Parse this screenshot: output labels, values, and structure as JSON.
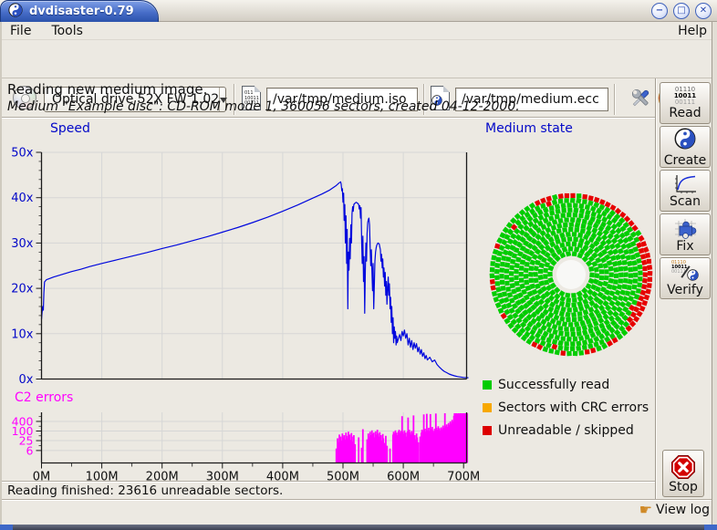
{
  "window": {
    "title": "dvdisaster-0.79",
    "minimize": "−",
    "maximize": "□",
    "close": "✕"
  },
  "menu": {
    "file": "File",
    "tools": "Tools",
    "help": "Help"
  },
  "toolbar": {
    "drive_value": "Optical drive 52X FW 1.02",
    "image_file": "/var/tmp/medium.iso",
    "ecc_file": "/var/tmp/medium.ecc"
  },
  "header": {
    "line1": "Reading new medium image.",
    "line2": "Medium \"Example disc\": CD-ROM mode 1, 360056 sectors, created 04-12-2000."
  },
  "icons": {
    "read_lines": [
      "01110",
      "10011",
      "00111"
    ],
    "doc_lines": [
      "011",
      "10011",
      "00111"
    ]
  },
  "chart_data": [
    {
      "type": "line",
      "title": "Speed",
      "color": "#0008dd",
      "axis_color": "#0308c8",
      "ylim": [
        0,
        50
      ],
      "xlim": [
        0,
        705
      ],
      "y_ticks": [
        0,
        10,
        20,
        30,
        40,
        50
      ],
      "ylabel_ticks": [
        "0x",
        "10x",
        "20x",
        "30x",
        "40x",
        "50x"
      ],
      "x_ticks": [
        0,
        100,
        200,
        300,
        400,
        500,
        600,
        700
      ],
      "x_tick_labels": [
        "0M",
        "100M",
        "200M",
        "300M",
        "400M",
        "500M",
        "600M",
        "700M"
      ],
      "grid": true,
      "points": [
        [
          0,
          13.2
        ],
        [
          1,
          14.8
        ],
        [
          2,
          16.0
        ],
        [
          3,
          15.2
        ],
        [
          4,
          19.0
        ],
        [
          5,
          21.4
        ],
        [
          8,
          21.9
        ],
        [
          12,
          22.1
        ],
        [
          20,
          22.5
        ],
        [
          30,
          22.9
        ],
        [
          40,
          23.3
        ],
        [
          50,
          23.7
        ],
        [
          65,
          24.2
        ],
        [
          80,
          24.8
        ],
        [
          100,
          25.5
        ],
        [
          125,
          26.3
        ],
        [
          150,
          27.1
        ],
        [
          175,
          27.9
        ],
        [
          200,
          28.8
        ],
        [
          225,
          29.6
        ],
        [
          250,
          30.5
        ],
        [
          275,
          31.4
        ],
        [
          300,
          32.4
        ],
        [
          325,
          33.4
        ],
        [
          350,
          34.5
        ],
        [
          375,
          35.7
        ],
        [
          400,
          37.0
        ],
        [
          425,
          38.4
        ],
        [
          450,
          39.9
        ],
        [
          465,
          40.8
        ],
        [
          478,
          41.7
        ],
        [
          488,
          42.6
        ],
        [
          493,
          43.2
        ],
        [
          496,
          43.5
        ],
        [
          497,
          43.0
        ],
        [
          498,
          41.5
        ],
        [
          499,
          42.0
        ],
        [
          500,
          39.0
        ],
        [
          501,
          41.0
        ],
        [
          502,
          35.0
        ],
        [
          503,
          38.5
        ],
        [
          504,
          30.0
        ],
        [
          505,
          36.0
        ],
        [
          506,
          25.5
        ],
        [
          507,
          33.0
        ],
        [
          508,
          15.5
        ],
        [
          509,
          28.0
        ],
        [
          510,
          24.0
        ],
        [
          511,
          31.0
        ],
        [
          512,
          26.5
        ],
        [
          513,
          34.0
        ],
        [
          514,
          30.0
        ],
        [
          515,
          36.5
        ],
        [
          516,
          38.0
        ],
        [
          517,
          37.0
        ],
        [
          518,
          38.5
        ],
        [
          520,
          38.8
        ],
        [
          522,
          39.0
        ],
        [
          524,
          38.8
        ],
        [
          526,
          38.5
        ],
        [
          527,
          37.5
        ],
        [
          528,
          38.2
        ],
        [
          529,
          35.5
        ],
        [
          530,
          37.8
        ],
        [
          531,
          30.0
        ],
        [
          532,
          25.5
        ],
        [
          533,
          31.5
        ],
        [
          534,
          21.5
        ],
        [
          535,
          27.0
        ],
        [
          536,
          14.5
        ],
        [
          537,
          24.0
        ],
        [
          538,
          30.0
        ],
        [
          539,
          26.0
        ],
        [
          540,
          32.0
        ],
        [
          541,
          34.5
        ],
        [
          542,
          35.2
        ],
        [
          543,
          35.5
        ],
        [
          544,
          34.0
        ],
        [
          545,
          29.5
        ],
        [
          546,
          25.0
        ],
        [
          547,
          28.5
        ],
        [
          548,
          24.0
        ],
        [
          549,
          19.5
        ],
        [
          550,
          25.5
        ],
        [
          551,
          15.5
        ],
        [
          552,
          21.0
        ],
        [
          553,
          26.0
        ],
        [
          554,
          28.0
        ],
        [
          555,
          29.0
        ],
        [
          556,
          29.5
        ],
        [
          558,
          30.0
        ],
        [
          560,
          29.8
        ],
        [
          562,
          28.5
        ],
        [
          563,
          26.0
        ],
        [
          564,
          27.5
        ],
        [
          565,
          24.5
        ],
        [
          566,
          26.5
        ],
        [
          567,
          22.5
        ],
        [
          568,
          24.5
        ],
        [
          569,
          20.5
        ],
        [
          570,
          23.5
        ],
        [
          571,
          18.5
        ],
        [
          572,
          21.5
        ],
        [
          573,
          16.5
        ],
        [
          574,
          20.0
        ],
        [
          575,
          22.5
        ],
        [
          576,
          18.5
        ],
        [
          577,
          21.0
        ],
        [
          578,
          15.5
        ],
        [
          579,
          18.0
        ],
        [
          580,
          12.5
        ],
        [
          581,
          16.0
        ],
        [
          582,
          10.0
        ],
        [
          583,
          13.5
        ],
        [
          584,
          8.0
        ],
        [
          585,
          11.5
        ],
        [
          586,
          9.0
        ],
        [
          587,
          10.5
        ],
        [
          588,
          7.5
        ],
        [
          589,
          9.5
        ],
        [
          590,
          8.0
        ],
        [
          592,
          9.0
        ],
        [
          594,
          9.8
        ],
        [
          596,
          8.5
        ],
        [
          598,
          10.5
        ],
        [
          600,
          9.5
        ],
        [
          602,
          10.8
        ],
        [
          604,
          9.0
        ],
        [
          606,
          10.0
        ],
        [
          608,
          7.5
        ],
        [
          610,
          9.0
        ],
        [
          612,
          7.0
        ],
        [
          614,
          8.5
        ],
        [
          616,
          6.5
        ],
        [
          618,
          8.0
        ],
        [
          620,
          6.8
        ],
        [
          622,
          7.8
        ],
        [
          624,
          6.0
        ],
        [
          626,
          7.0
        ],
        [
          628,
          5.5
        ],
        [
          630,
          6.5
        ],
        [
          632,
          5.0
        ],
        [
          634,
          5.8
        ],
        [
          636,
          4.5
        ],
        [
          638,
          5.2
        ],
        [
          640,
          4.2
        ],
        [
          644,
          4.8
        ],
        [
          648,
          3.8
        ],
        [
          652,
          4.2
        ],
        [
          656,
          3.2
        ],
        [
          660,
          2.6
        ],
        [
          664,
          2.1
        ],
        [
          668,
          1.7
        ],
        [
          672,
          1.4
        ],
        [
          676,
          1.1
        ],
        [
          680,
          0.9
        ],
        [
          685,
          0.7
        ],
        [
          690,
          0.55
        ],
        [
          695,
          0.45
        ],
        [
          700,
          0.35
        ],
        [
          705,
          0.3
        ],
        [
          708,
          0.28
        ]
      ]
    },
    {
      "type": "bar",
      "title": "C2 errors",
      "color": "#ff00ff",
      "axis_color": "#ff00ff",
      "scale": "log",
      "y_ticks": [
        6,
        25,
        100,
        400
      ],
      "y_tick_labels": [
        "6",
        "25",
        "100",
        "400"
      ],
      "minor_ticks": [
        12,
        50,
        200,
        800
      ],
      "bars": [
        [
          489,
          8
        ],
        [
          491,
          35
        ],
        [
          493,
          20
        ],
        [
          494,
          60
        ],
        [
          496,
          45
        ],
        [
          497,
          25
        ],
        [
          499,
          70
        ],
        [
          500,
          40
        ],
        [
          502,
          55
        ],
        [
          503,
          30
        ],
        [
          505,
          80
        ],
        [
          506,
          50
        ],
        [
          508,
          35
        ],
        [
          509,
          90
        ],
        [
          511,
          60
        ],
        [
          512,
          28
        ],
        [
          514,
          75
        ],
        [
          515,
          45
        ],
        [
          517,
          22
        ],
        [
          518,
          55
        ],
        [
          520,
          15
        ],
        [
          526,
          40
        ],
        [
          531,
          9
        ],
        [
          533,
          130
        ],
        [
          540,
          30
        ],
        [
          542,
          70
        ],
        [
          543,
          45
        ],
        [
          545,
          90
        ],
        [
          546,
          55
        ],
        [
          548,
          110
        ],
        [
          549,
          65
        ],
        [
          551,
          80
        ],
        [
          552,
          40
        ],
        [
          554,
          95
        ],
        [
          555,
          60
        ],
        [
          557,
          120
        ],
        [
          558,
          70
        ],
        [
          560,
          45
        ],
        [
          561,
          85
        ],
        [
          563,
          55
        ],
        [
          564,
          25
        ],
        [
          566,
          65
        ],
        [
          567,
          35
        ],
        [
          569,
          18
        ],
        [
          571,
          50
        ],
        [
          573,
          12
        ],
        [
          578,
          8
        ],
        [
          583,
          60
        ],
        [
          584,
          90
        ],
        [
          586,
          70
        ],
        [
          587,
          110
        ],
        [
          589,
          80
        ],
        [
          590,
          55
        ],
        [
          592,
          95
        ],
        [
          593,
          120
        ],
        [
          595,
          75
        ],
        [
          596,
          100
        ],
        [
          598,
          850
        ],
        [
          599,
          90
        ],
        [
          601,
          65
        ],
        [
          602,
          110
        ],
        [
          604,
          80
        ],
        [
          605,
          45
        ],
        [
          607,
          95
        ],
        [
          608,
          700
        ],
        [
          610,
          120
        ],
        [
          611,
          85
        ],
        [
          613,
          60
        ],
        [
          614,
          100
        ],
        [
          616,
          75
        ],
        [
          617,
          950
        ],
        [
          619,
          55
        ],
        [
          620,
          30
        ],
        [
          622,
          70
        ],
        [
          623,
          40
        ],
        [
          625,
          20
        ],
        [
          628,
          45
        ],
        [
          630,
          80
        ],
        [
          631,
          120
        ],
        [
          633,
          95
        ],
        [
          634,
          1100
        ],
        [
          636,
          140
        ],
        [
          637,
          90
        ],
        [
          639,
          1200
        ],
        [
          640,
          110
        ],
        [
          642,
          160
        ],
        [
          643,
          100
        ],
        [
          645,
          1150
        ],
        [
          646,
          130
        ],
        [
          648,
          180
        ],
        [
          649,
          110
        ],
        [
          651,
          90
        ],
        [
          652,
          140
        ],
        [
          654,
          1250
        ],
        [
          655,
          160
        ],
        [
          657,
          120
        ],
        [
          658,
          200
        ],
        [
          660,
          150
        ],
        [
          661,
          110
        ],
        [
          663,
          170
        ],
        [
          664,
          130
        ],
        [
          666,
          220
        ],
        [
          667,
          160
        ],
        [
          669,
          1300
        ],
        [
          670,
          200
        ],
        [
          672,
          260
        ],
        [
          673,
          180
        ],
        [
          675,
          320
        ],
        [
          676,
          240
        ],
        [
          678,
          400
        ],
        [
          679,
          300
        ],
        [
          681,
          500
        ],
        [
          682,
          380
        ],
        [
          684,
          900
        ],
        [
          685,
          1300
        ],
        [
          687,
          1250
        ],
        [
          688,
          1300
        ],
        [
          690,
          1200
        ],
        [
          691,
          1300
        ],
        [
          693,
          1250
        ],
        [
          694,
          1300
        ],
        [
          696,
          1300
        ],
        [
          697,
          1250
        ],
        [
          699,
          1300
        ],
        [
          700,
          1300
        ],
        [
          702,
          1250
        ],
        [
          703,
          1300
        ],
        [
          705,
          1300
        ],
        [
          706,
          1280
        ]
      ]
    }
  ],
  "medium_state": {
    "title": "Medium state",
    "legend": [
      {
        "label": "Successfully read",
        "color": "#00cc00"
      },
      {
        "label": "Sectors with CRC errors",
        "color": "#f7a800"
      },
      {
        "label": "Unreadable / skipped",
        "color": "#dd0000"
      }
    ],
    "disc": {
      "rings": 13,
      "inner_radius": 23,
      "ring_step": 5.3,
      "square": 5.2,
      "good_color": "#00cc00",
      "bad_color": "#e60000",
      "red_arcs": [
        {
          "ring": 12,
          "from": -116,
          "to": -104
        },
        {
          "ring": 12,
          "from": -99,
          "to": -88
        },
        {
          "ring": 12,
          "from": -84,
          "to": -35
        },
        {
          "ring": 12,
          "from": -30,
          "to": 47
        },
        {
          "ring": 11,
          "from": -28,
          "to": 41
        },
        {
          "ring": 11,
          "from": -110,
          "to": -106
        },
        {
          "ring": 10,
          "from": 24,
          "to": 32
        },
        {
          "ring": 12,
          "from": 55,
          "to": 61
        },
        {
          "ring": 12,
          "from": 73,
          "to": 79
        },
        {
          "ring": 12,
          "from": 93,
          "to": 99
        },
        {
          "ring": 11,
          "from": 99,
          "to": 105
        },
        {
          "ring": 12,
          "from": 113,
          "to": 118
        },
        {
          "ring": 12,
          "from": 145,
          "to": 150
        },
        {
          "ring": 12,
          "from": 169,
          "to": 177
        },
        {
          "ring": 11,
          "from": -142,
          "to": -137
        },
        {
          "ring": 12,
          "from": -163,
          "to": -158
        }
      ]
    }
  },
  "sidebar": {
    "read": "Read",
    "create": "Create",
    "scan": "Scan",
    "fix": "Fix",
    "verify": "Verify",
    "stop": "Stop"
  },
  "status": {
    "finished": "Reading finished: 23616 unreadable sectors.",
    "view_log": "View log"
  }
}
